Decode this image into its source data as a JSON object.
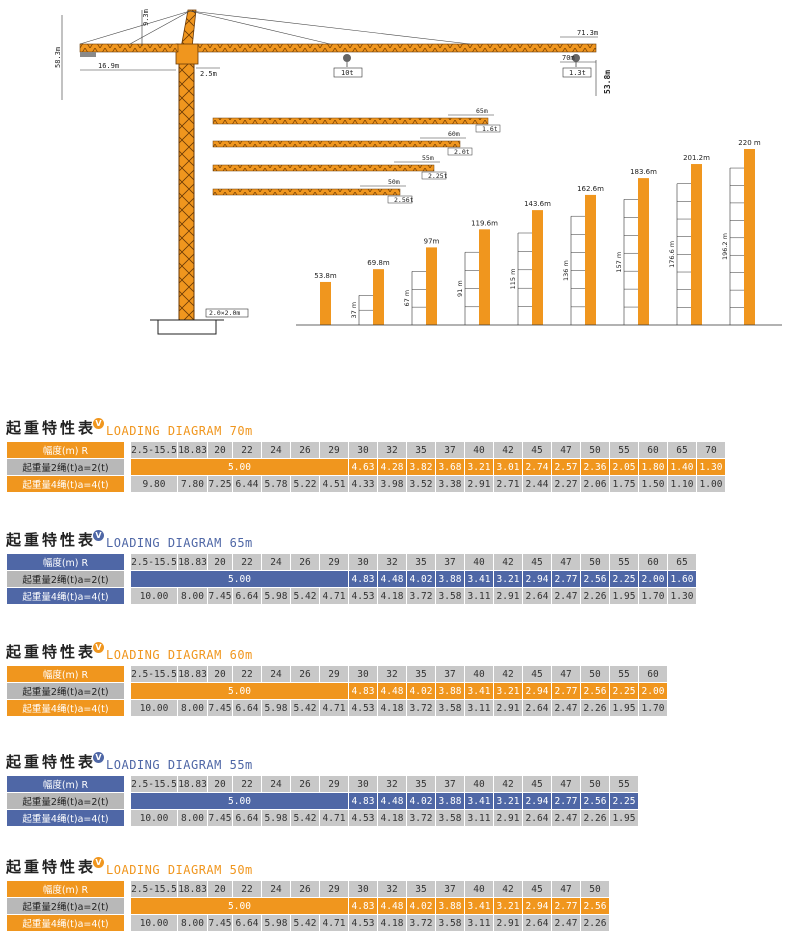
{
  "colors": {
    "orange": "#f0961e",
    "blue": "#4f67a6",
    "grey": "#c8c8c8",
    "grey_dark": "#b8b8b8",
    "text": "#222222"
  },
  "diagram": {
    "dims": {
      "max_jib": "71.3m",
      "height_under_hook": "53.8m",
      "tip_height": "9.3m",
      "counter_jib": "16.9m",
      "head_offset": "2.5m",
      "left_height": "58.3m",
      "near_load": "10t",
      "tip_radius": "70m",
      "tip_load": "1.3t",
      "section_size": "2.0×2.0m"
    },
    "jib_options": [
      {
        "length": "65m",
        "load": "1.6t"
      },
      {
        "length": "60m",
        "load": "2.0t"
      },
      {
        "length": "55m",
        "load": "2.25t"
      },
      {
        "length": "50m",
        "load": "2.56t"
      }
    ],
    "tower_heights": [
      {
        "top": "53.8m",
        "tie": ""
      },
      {
        "top": "69.8m",
        "tie": "37 m"
      },
      {
        "top": "97m",
        "tie": "67 m"
      },
      {
        "top": "119.6m",
        "tie": "91 m"
      },
      {
        "top": "143.6m",
        "tie": "115 m"
      },
      {
        "top": "162.6m",
        "tie": "136 m"
      },
      {
        "top": "183.6m",
        "tie": "157 m"
      },
      {
        "top": "201.2m",
        "tie": "176.6 m"
      },
      {
        "top": "220 m",
        "tie": "196.2 m"
      }
    ]
  },
  "tables": [
    {
      "title_zh": "起重特性表",
      "badge": "V",
      "title_en": "LOADING DIAGRAM 70m",
      "theme": "orange",
      "labels": {
        "radius": "幅度(m) R",
        "two_fall": "起重量2绳(t)a=2(t)",
        "four_fall": "起重量4绳(t)a=4(t)"
      },
      "radius": [
        "2.5-15.5",
        "18.83",
        "20",
        "22",
        "24",
        "26",
        "29",
        "30",
        "32",
        "35",
        "37",
        "40",
        "42",
        "45",
        "47",
        "50",
        "55",
        "60",
        "65",
        "70"
      ],
      "const_two": "5.00",
      "two_fall": [
        "4.63",
        "4.28",
        "3.82",
        "3.68",
        "3.21",
        "3.01",
        "2.74",
        "2.57",
        "2.36",
        "2.05",
        "1.80",
        "1.40",
        "1.30"
      ],
      "four_fall": [
        "9.80",
        "7.80",
        "7.25",
        "6.44",
        "5.78",
        "5.22",
        "4.51",
        "4.33",
        "3.98",
        "3.52",
        "3.38",
        "2.91",
        "2.71",
        "2.44",
        "2.27",
        "2.06",
        "1.75",
        "1.50",
        "1.10",
        "1.00"
      ]
    },
    {
      "title_zh": "起重特性表",
      "badge": "V",
      "title_en": "LOADING DIAGRAM 65m",
      "theme": "blue",
      "labels": {
        "radius": "幅度(m) R",
        "two_fall": "起重量2绳(t)a=2(t)",
        "four_fall": "起重量4绳(t)a=4(t)"
      },
      "radius": [
        "2.5-15.5",
        "18.83",
        "20",
        "22",
        "24",
        "26",
        "29",
        "30",
        "32",
        "35",
        "37",
        "40",
        "42",
        "45",
        "47",
        "50",
        "55",
        "60",
        "65"
      ],
      "const_two": "5.00",
      "two_fall": [
        "4.83",
        "4.48",
        "4.02",
        "3.88",
        "3.41",
        "3.21",
        "2.94",
        "2.77",
        "2.56",
        "2.25",
        "2.00",
        "1.60"
      ],
      "four_fall": [
        "10.00",
        "8.00",
        "7.45",
        "6.64",
        "5.98",
        "5.42",
        "4.71",
        "4.53",
        "4.18",
        "3.72",
        "3.58",
        "3.11",
        "2.91",
        "2.64",
        "2.47",
        "2.26",
        "1.95",
        "1.70",
        "1.30"
      ]
    },
    {
      "title_zh": "起重特性表",
      "badge": "V",
      "title_en": "LOADING DIAGRAM 60m",
      "theme": "orange",
      "labels": {
        "radius": "幅度(m) R",
        "two_fall": "起重量2绳(t)a=2(t)",
        "four_fall": "起重量4绳(t)a=4(t)"
      },
      "radius": [
        "2.5-15.5",
        "18.83",
        "20",
        "22",
        "24",
        "26",
        "29",
        "30",
        "32",
        "35",
        "37",
        "40",
        "42",
        "45",
        "47",
        "50",
        "55",
        "60"
      ],
      "const_two": "5.00",
      "two_fall": [
        "4.83",
        "4.48",
        "4.02",
        "3.88",
        "3.41",
        "3.21",
        "2.94",
        "2.77",
        "2.56",
        "2.25",
        "2.00"
      ],
      "four_fall": [
        "10.00",
        "8.00",
        "7.45",
        "6.64",
        "5.98",
        "5.42",
        "4.71",
        "4.53",
        "4.18",
        "3.72",
        "3.58",
        "3.11",
        "2.91",
        "2.64",
        "2.47",
        "2.26",
        "1.95",
        "1.70"
      ]
    },
    {
      "title_zh": "起重特性表",
      "badge": "V",
      "title_en": "LOADING DIAGRAM 55m",
      "theme": "blue",
      "labels": {
        "radius": "幅度(m) R",
        "two_fall": "起重量2绳(t)a=2(t)",
        "four_fall": "起重量4绳(t)a=4(t)"
      },
      "radius": [
        "2.5-15.5",
        "18.83",
        "20",
        "22",
        "24",
        "26",
        "29",
        "30",
        "32",
        "35",
        "37",
        "40",
        "42",
        "45",
        "47",
        "50",
        "55"
      ],
      "const_two": "5.00",
      "two_fall": [
        "4.83",
        "4.48",
        "4.02",
        "3.88",
        "3.41",
        "3.21",
        "2.94",
        "2.77",
        "2.56",
        "2.25"
      ],
      "four_fall": [
        "10.00",
        "8.00",
        "7.45",
        "6.64",
        "5.98",
        "5.42",
        "4.71",
        "4.53",
        "4.18",
        "3.72",
        "3.58",
        "3.11",
        "2.91",
        "2.64",
        "2.47",
        "2.26",
        "1.95"
      ]
    },
    {
      "title_zh": "起重特性表",
      "badge": "V",
      "title_en": "LOADING DIAGRAM 50m",
      "theme": "orange",
      "labels": {
        "radius": "幅度(m) R",
        "two_fall": "起重量2绳(t)a=2(t)",
        "four_fall": "起重量4绳(t)a=4(t)"
      },
      "radius": [
        "2.5-15.5",
        "18.83",
        "20",
        "22",
        "24",
        "26",
        "29",
        "30",
        "32",
        "35",
        "37",
        "40",
        "42",
        "45",
        "47",
        "50"
      ],
      "const_two": "5.00",
      "two_fall": [
        "4.83",
        "4.48",
        "4.02",
        "3.88",
        "3.41",
        "3.21",
        "2.94",
        "2.77",
        "2.56"
      ],
      "four_fall": [
        "10.00",
        "8.00",
        "7.45",
        "6.64",
        "5.98",
        "5.42",
        "4.71",
        "4.53",
        "4.18",
        "3.72",
        "3.58",
        "3.11",
        "2.91",
        "2.64",
        "2.47",
        "2.26"
      ]
    }
  ]
}
